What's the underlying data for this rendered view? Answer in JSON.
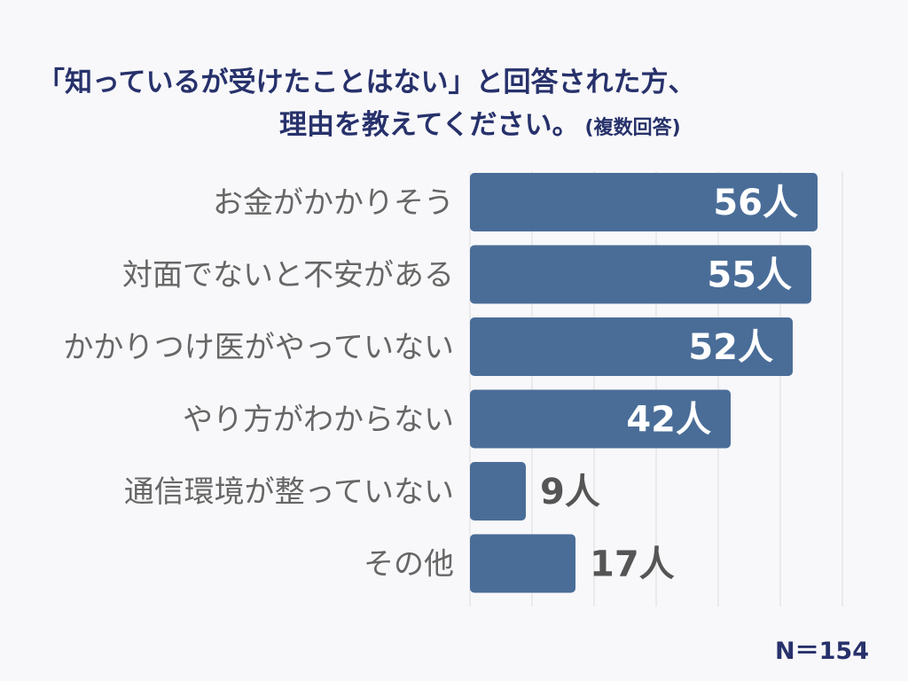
{
  "title": {
    "line1": "「知っているが受けたことはない」と回答された方、",
    "line2": "理由を教えてください。",
    "note": "(複数回答)"
  },
  "sample_size": "N＝154",
  "colors": {
    "bar": "#4a6d98",
    "title": "#27316b",
    "label": "#666666",
    "value_outside": "#555555"
  },
  "chart_data": {
    "type": "bar",
    "orientation": "horizontal",
    "categories": [
      "お金がかかりそう",
      "対面でないと不安がある",
      "かかりつけ医がやっていない",
      "やり方がわからない",
      "通信環境が整っていない",
      "その他"
    ],
    "values": [
      56,
      55,
      52,
      42,
      9,
      17
    ],
    "value_labels": [
      "56人",
      "55人",
      "52人",
      "42人",
      "9人",
      "17人"
    ],
    "xlim": [
      0,
      60
    ],
    "grid": true
  }
}
